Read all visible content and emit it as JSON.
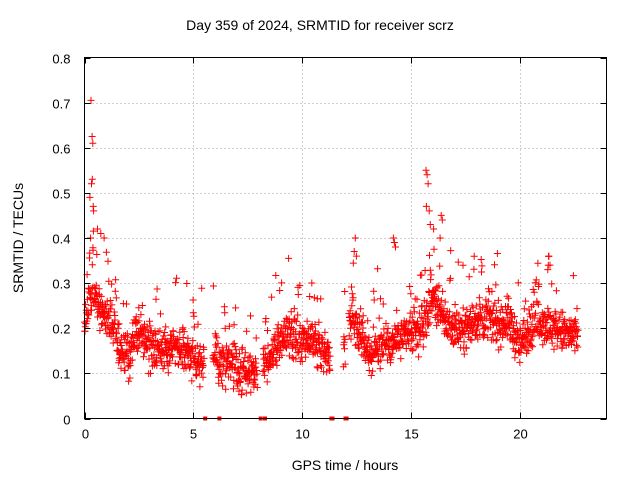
{
  "chart_data": {
    "type": "scatter",
    "title": "Day 359 of 2024, SRMTID for receiver scrz",
    "xlabel": "GPS time / hours",
    "ylabel": "SRMTID / TECUs",
    "xlim": [
      0,
      24
    ],
    "ylim": [
      0,
      0.8
    ],
    "xticks": [
      0,
      5,
      10,
      15,
      20
    ],
    "yticks": [
      0,
      0.1,
      0.2,
      0.3,
      0.4,
      0.5,
      0.6,
      0.7,
      0.8
    ],
    "grid": true,
    "marker": "+",
    "color": "#ff0000",
    "gaps": [
      [
        5.5,
        5.9
      ],
      [
        7.95,
        8.2
      ],
      [
        11.3,
        11.9
      ],
      [
        12.0,
        12.15
      ]
    ],
    "zero_points": [
      5.55,
      6.2,
      8.1,
      8.3,
      11.35,
      11.4,
      12.0,
      12.05
    ],
    "trend": [
      [
        0.0,
        0.2
      ],
      [
        0.2,
        0.26
      ],
      [
        0.5,
        0.27
      ],
      [
        0.8,
        0.24
      ],
      [
        1.2,
        0.22
      ],
      [
        1.6,
        0.16
      ],
      [
        2.0,
        0.14
      ],
      [
        2.5,
        0.2
      ],
      [
        3.0,
        0.16
      ],
      [
        3.5,
        0.15
      ],
      [
        4.0,
        0.17
      ],
      [
        4.5,
        0.16
      ],
      [
        5.0,
        0.14
      ],
      [
        5.5,
        0.12
      ],
      [
        6.0,
        0.13
      ],
      [
        6.5,
        0.12
      ],
      [
        7.0,
        0.11
      ],
      [
        7.5,
        0.1
      ],
      [
        8.0,
        0.11
      ],
      [
        8.5,
        0.14
      ],
      [
        9.0,
        0.17
      ],
      [
        9.5,
        0.19
      ],
      [
        10.0,
        0.16
      ],
      [
        10.5,
        0.17
      ],
      [
        11.0,
        0.15
      ],
      [
        11.5,
        0.13
      ],
      [
        12.0,
        0.16
      ],
      [
        12.3,
        0.24
      ],
      [
        12.7,
        0.18
      ],
      [
        13.2,
        0.14
      ],
      [
        13.7,
        0.17
      ],
      [
        14.2,
        0.17
      ],
      [
        14.8,
        0.18
      ],
      [
        15.2,
        0.19
      ],
      [
        15.6,
        0.2
      ],
      [
        16.0,
        0.27
      ],
      [
        16.5,
        0.22
      ],
      [
        17.0,
        0.2
      ],
      [
        17.5,
        0.2
      ],
      [
        18.0,
        0.22
      ],
      [
        18.5,
        0.22
      ],
      [
        19.0,
        0.21
      ],
      [
        19.5,
        0.22
      ],
      [
        20.0,
        0.16
      ],
      [
        20.5,
        0.2
      ],
      [
        21.0,
        0.22
      ],
      [
        21.5,
        0.2
      ],
      [
        22.0,
        0.19
      ],
      [
        22.7,
        0.18
      ]
    ],
    "spikes": [
      [
        0.3,
        0.705
      ],
      [
        0.35,
        0.625
      ],
      [
        0.38,
        0.61
      ],
      [
        0.32,
        0.52
      ],
      [
        0.36,
        0.53
      ],
      [
        0.4,
        0.47
      ],
      [
        0.42,
        0.46
      ],
      [
        0.25,
        0.49
      ],
      [
        0.28,
        0.4
      ],
      [
        0.6,
        0.42
      ],
      [
        0.75,
        0.41
      ],
      [
        0.9,
        0.4
      ],
      [
        15.7,
        0.55
      ],
      [
        15.75,
        0.54
      ],
      [
        15.8,
        0.52
      ],
      [
        15.72,
        0.47
      ],
      [
        15.85,
        0.46
      ],
      [
        15.9,
        0.43
      ],
      [
        16.05,
        0.42
      ],
      [
        16.4,
        0.45
      ],
      [
        16.45,
        0.44
      ],
      [
        16.35,
        0.4
      ],
      [
        14.2,
        0.4
      ],
      [
        14.25,
        0.39
      ],
      [
        14.3,
        0.38
      ],
      [
        12.45,
        0.4
      ],
      [
        12.4,
        0.37
      ],
      [
        12.5,
        0.36
      ],
      [
        21.35,
        0.36
      ],
      [
        21.4,
        0.34
      ],
      [
        21.3,
        0.33
      ]
    ]
  }
}
